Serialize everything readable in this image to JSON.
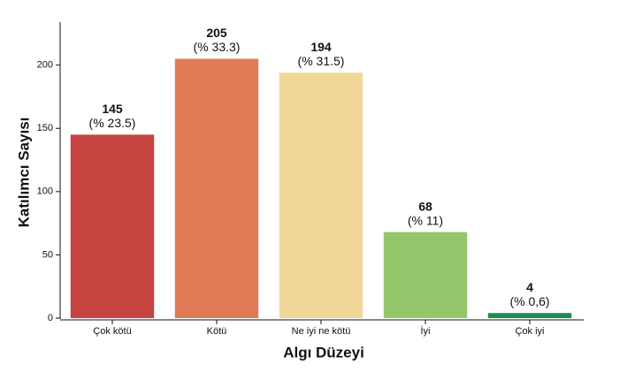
{
  "chart_data": {
    "type": "bar",
    "x_label": "Algı Düzeyi",
    "y_label": "Katılımcı Sayısı",
    "categories": [
      "Çok kötü",
      "Kötü",
      "Ne iyi ne kötü",
      "İyi",
      "Çok iyi"
    ],
    "values": [
      145,
      205,
      194,
      68,
      4
    ],
    "percent_labels": [
      "(% 23.5)",
      "(% 33.3)",
      "(% 31.5)",
      "(% 11)",
      "(% 0,6)"
    ],
    "colors": [
      "#c5443f",
      "#e07b58",
      "#f2d898",
      "#95c56b",
      "#1e8a4e"
    ],
    "ylim": [
      0,
      234
    ],
    "yticks": [
      0,
      50,
      100,
      150,
      200
    ]
  }
}
